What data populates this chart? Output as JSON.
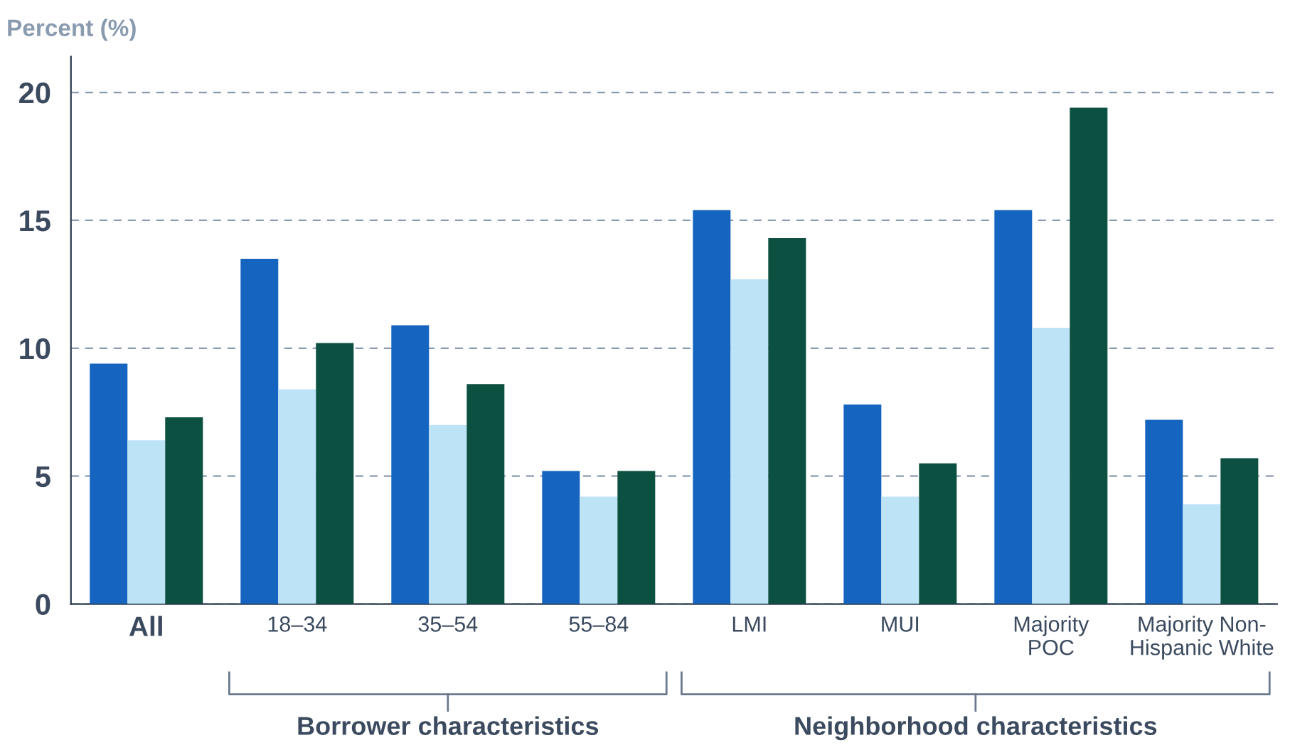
{
  "chart_data": {
    "type": "bar",
    "ylabel": "Percent (%)",
    "categories": [
      "All",
      "18–34",
      "35–54",
      "55–84",
      "LMI",
      "MUI",
      "Majority\nPOC",
      "Majority Non-\nHispanic White"
    ],
    "series": [
      {
        "color": "#1565c0",
        "values": [
          9.4,
          13.5,
          10.9,
          5.2,
          15.4,
          7.8,
          15.4,
          7.2
        ]
      },
      {
        "color": "#bde3f7",
        "values": [
          6.4,
          8.4,
          7.0,
          4.2,
          12.7,
          4.2,
          10.8,
          3.9
        ]
      },
      {
        "color": "#0b5040",
        "values": [
          7.3,
          10.2,
          8.6,
          5.2,
          14.3,
          5.5,
          19.4,
          5.7
        ]
      }
    ],
    "ylim": [
      0,
      21.4
    ],
    "yticks": [
      0,
      5,
      10,
      15,
      20
    ],
    "grid": "y",
    "annotations": [
      "Borrower characteristics",
      "Neighborhood characteristics"
    ]
  }
}
